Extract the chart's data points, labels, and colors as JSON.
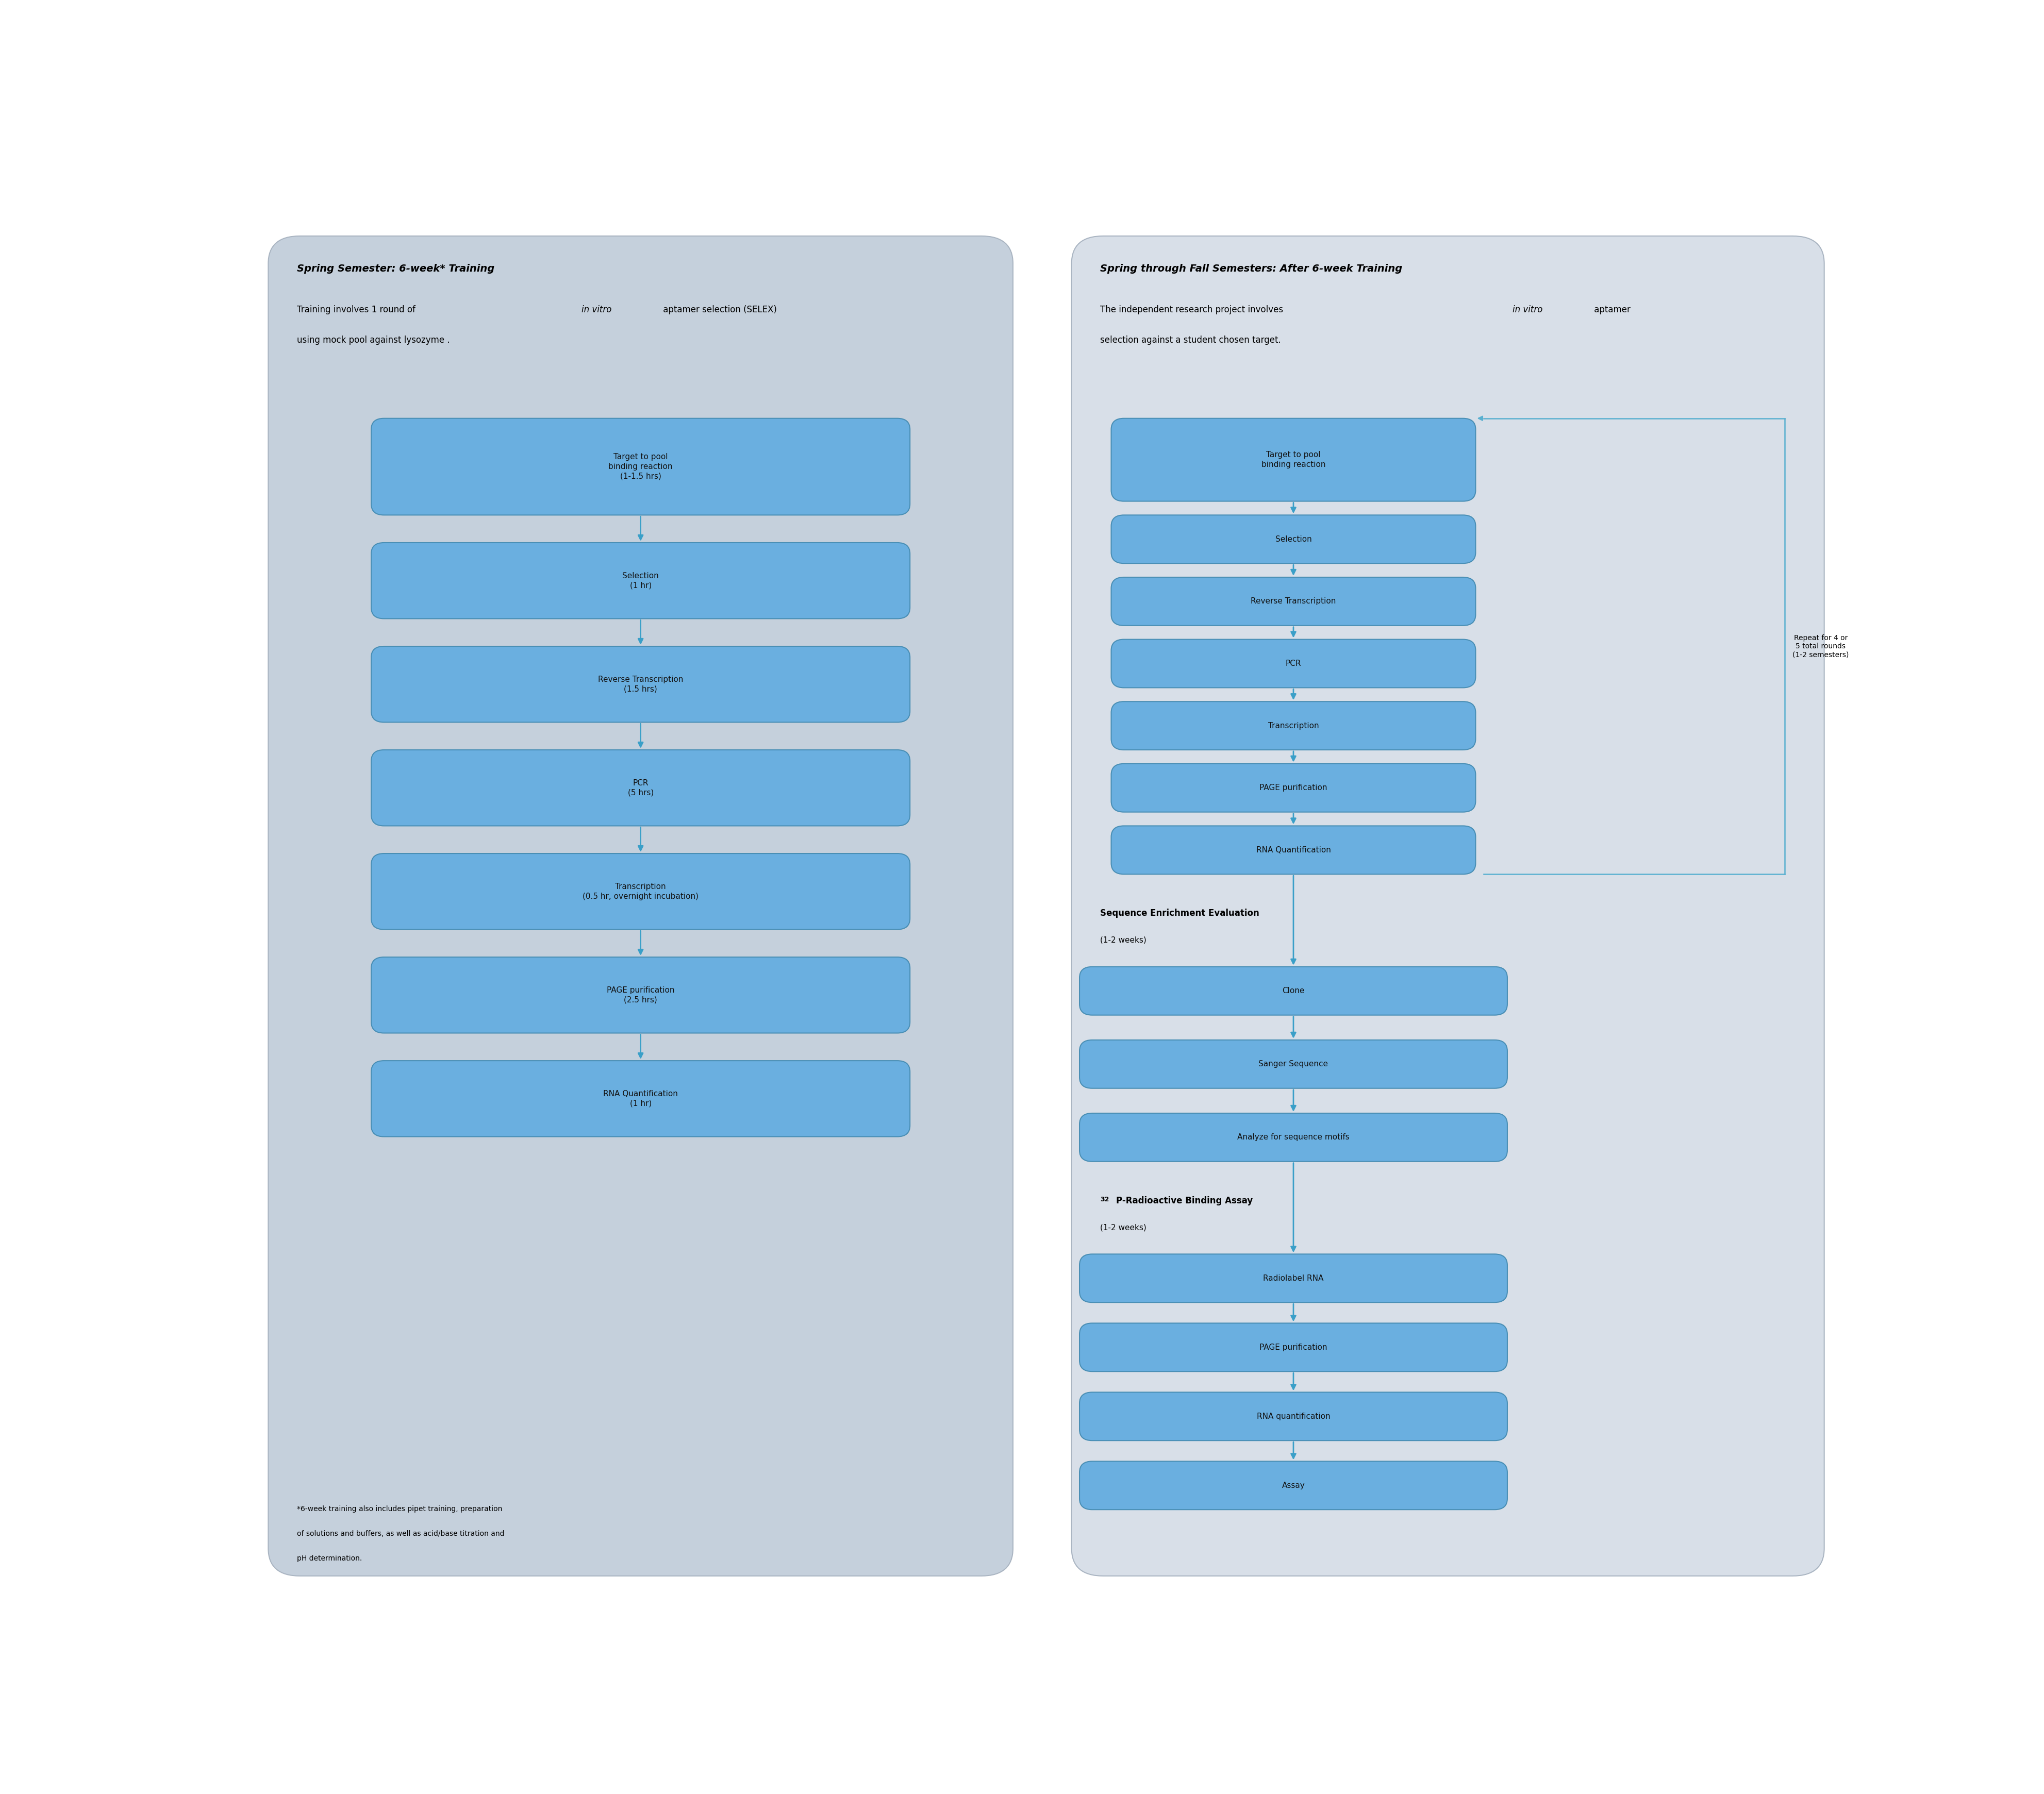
{
  "fig_width": 39.66,
  "fig_height": 34.81,
  "bg_color": "#ffffff",
  "left_panel_bg": "#c5d0dc",
  "right_panel_bg": "#d8dfe8",
  "box_color": "#6aafe0",
  "box_edge_color": "#4a8fb5",
  "box_gradient_top": "#7bbde8",
  "box_gradient_bot": "#5ba0d0",
  "arrow_color": "#3a9fc8",
  "text_color": "#000000",
  "box_text_color": "#111111",
  "left_title": "Spring Semester: 6-week* Training",
  "left_sub1": "Training involves 1 round of ",
  "left_sub1_italic": "in vitro",
  "left_sub1_rest": " aptamer selection (SELEX)",
  "left_sub2": "using mock pool against lysozyme .",
  "left_footnote_lines": [
    "*6-week training also includes pipet training, preparation",
    "of solutions and buffers, as well as acid/base titration and",
    "pH determination."
  ],
  "left_boxes": [
    "Target to pool\nbinding reaction\n(1-1.5 hrs)",
    "Selection\n(1 hr)",
    "Reverse Transcription\n(1.5 hrs)",
    "PCR\n(5 hrs)",
    "Transcription\n(0.5 hr, overnight incubation)",
    "PAGE purification\n(2.5 hrs)",
    "RNA Quantification\n(1 hr)"
  ],
  "right_title": "Spring through Fall Semesters: After 6-week Training",
  "right_sub1": "The independent research project involves ",
  "right_sub1_italic": "in vitro",
  "right_sub1_rest": " aptamer",
  "right_sub2": "selection against a student chosen target.",
  "right_boxes_top": [
    "Target to pool\nbinding reaction",
    "Selection",
    "Reverse Transcription",
    "PCR",
    "Transcription",
    "PAGE purification",
    "RNA Quantification"
  ],
  "repeat_label": "Repeat for 4 or\n5 total rounds\n(1-2 semesters)",
  "seq_enrich_title": "Sequence Enrichment Evaluation",
  "seq_enrich_time": "(1-2 weeks)",
  "seq_enrich_boxes": [
    "Clone",
    "Sanger Sequence",
    "Analyze for sequence motifs"
  ],
  "radio_title_super": "32",
  "radio_title_rest": "P-Radioactive Binding Assay",
  "radio_time": "(1-2 weeks)",
  "radio_boxes": [
    "Radiolabel RNA",
    "PAGE purification",
    "RNA quantification",
    "Assay"
  ]
}
